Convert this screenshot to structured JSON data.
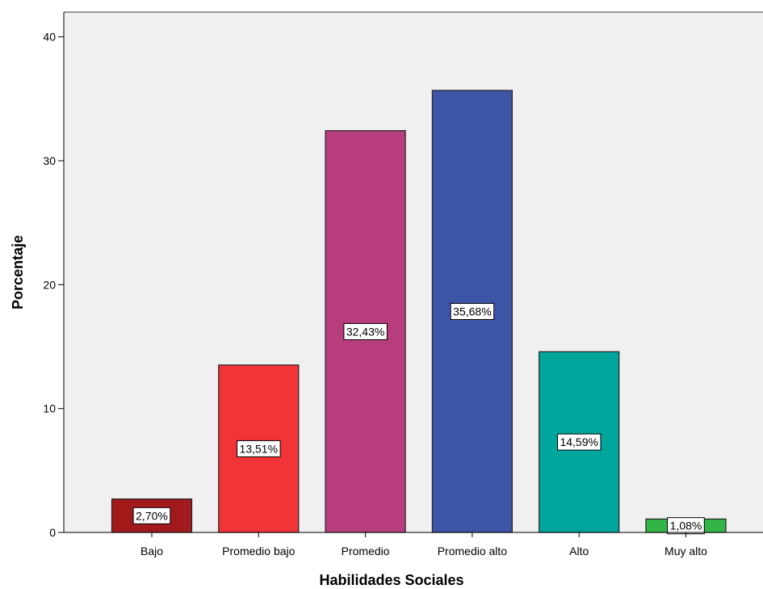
{
  "chart_data": {
    "type": "bar",
    "categories": [
      "Bajo",
      "Promedio bajo",
      "Promedio",
      "Promedio alto",
      "Alto",
      "Muy alto"
    ],
    "values": [
      2.7,
      13.51,
      32.43,
      35.68,
      14.59,
      1.08
    ],
    "data_labels": [
      "2,70%",
      "13,51%",
      "32,43%",
      "35,68%",
      "14,59%",
      "1,08%"
    ],
    "colors": [
      "#a31a1c",
      "#f03438",
      "#b83d7d",
      "#3d55a6",
      "#00a59c",
      "#33b447"
    ],
    "xlabel": "Habilidades Sociales",
    "ylabel": "Porcentaje",
    "ylim": [
      0,
      42
    ],
    "yticks": [
      0,
      10,
      20,
      30,
      40
    ],
    "grid": false,
    "background": "#f0f0f0"
  }
}
